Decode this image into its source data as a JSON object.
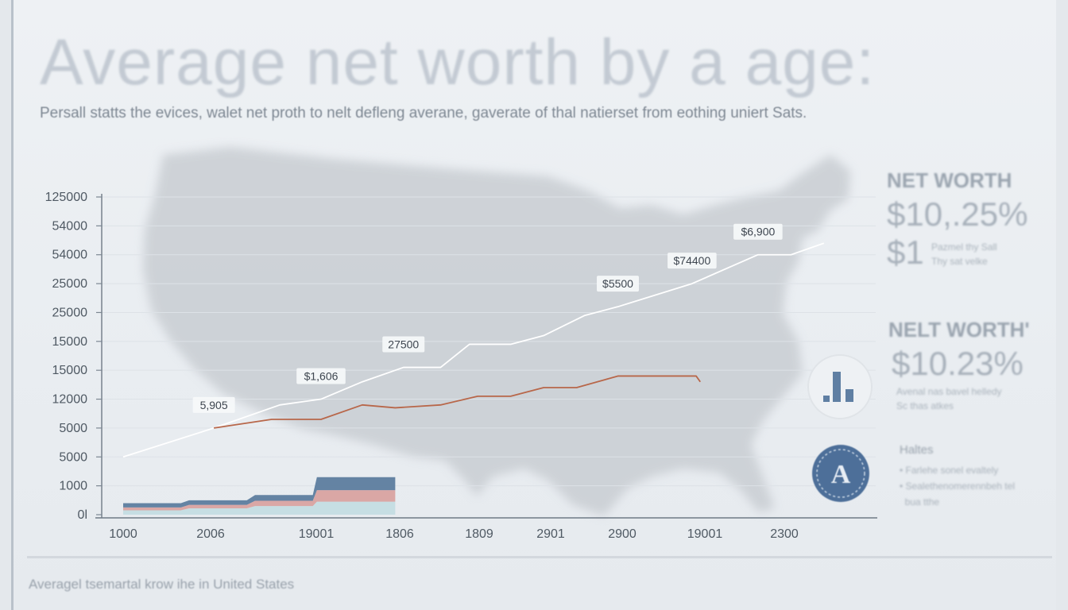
{
  "title": "Average net worth by a age:",
  "subtitle": "Persall statts the evices, walet net proth to nelt defleng averane, gaverate of thal natierset from eothing uniert Sats.",
  "footer": "Averagel tsemartal krow ihe in United States",
  "side_panel": {
    "heading_1": "NET WORTH",
    "value_1a": "$10,.25%",
    "value_1b": "$1",
    "note_1a": "Pazmel thy Sall",
    "note_1b": "Thy sat velke",
    "heading_2": "NELT WORTH'",
    "value_2": "$10.23%",
    "note_2a": "Avenal nas bavel helledy",
    "note_2b": "Sc thas atkes",
    "badge_letter": "A",
    "notes_title": "Haltes",
    "bullet_1": "Farlehe sonel evaltely",
    "bullet_2": "Sealethenomerennbeh tel",
    "bullet_3": "bua tthe",
    "icons": [
      "bar-chart-icon",
      "seal-emblem-icon"
    ]
  },
  "chart_data": {
    "type": "line",
    "y_tick_labels": [
      "0l",
      "1000",
      "5000",
      "5000",
      "12000",
      "15000",
      "15000",
      "25000",
      "25000",
      "54000",
      "54000",
      "125000"
    ],
    "x_tick_labels": [
      "1000",
      "2006",
      "19001",
      "1806",
      "1809",
      "2901",
      "2900",
      "19001",
      "2300"
    ],
    "y_index_range": [
      0,
      11
    ],
    "x_index_range": [
      0,
      8
    ],
    "series": [
      {
        "color": "#ffffff",
        "points": [
          [
            0.0,
            2.0
          ],
          [
            1.1,
            3.0
          ],
          [
            1.9,
            3.8
          ],
          [
            2.4,
            4.0
          ],
          [
            2.9,
            4.6
          ],
          [
            3.4,
            5.1
          ],
          [
            3.85,
            5.1
          ],
          [
            4.2,
            5.9
          ],
          [
            4.7,
            5.9
          ],
          [
            5.1,
            6.2
          ],
          [
            5.6,
            6.9
          ],
          [
            6.0,
            7.2
          ],
          [
            6.9,
            8.0
          ],
          [
            7.7,
            9.0
          ],
          [
            8.1,
            9.0
          ],
          [
            8.5,
            9.4
          ]
        ],
        "labels": [
          {
            "text": "5,905",
            "at": 1
          },
          {
            "text": "$1,606",
            "at": 3
          },
          {
            "text": "27500",
            "at": 5
          },
          {
            "text": "$5500",
            "at": 11
          },
          {
            "text": "$74400",
            "at": 12
          },
          {
            "text": "$6,900",
            "at": 13
          }
        ]
      },
      {
        "color": "#b8674a",
        "points": [
          [
            1.1,
            3.0
          ],
          [
            1.8,
            3.3
          ],
          [
            2.4,
            3.3
          ],
          [
            2.9,
            3.8
          ],
          [
            3.3,
            3.7
          ],
          [
            3.85,
            3.8
          ],
          [
            4.3,
            4.1
          ],
          [
            4.7,
            4.1
          ],
          [
            5.1,
            4.4
          ],
          [
            5.5,
            4.4
          ],
          [
            6.0,
            4.8
          ],
          [
            6.4,
            4.8
          ],
          [
            6.95,
            4.8
          ],
          [
            7.0,
            4.6
          ]
        ]
      }
    ],
    "stacked_area": {
      "x": [
        0.0,
        0.7,
        0.8,
        1.5,
        1.6,
        2.3,
        2.35,
        3.3
      ],
      "layers": [
        {
          "color": "#c4dde2",
          "values": [
            0.15,
            0.15,
            0.22,
            0.22,
            0.3,
            0.3,
            0.45,
            0.45
          ]
        },
        {
          "color": "#d9a3a0",
          "values": [
            0.1,
            0.1,
            0.12,
            0.12,
            0.18,
            0.18,
            0.4,
            0.4
          ]
        },
        {
          "color": "#5d7d9e",
          "values": [
            0.15,
            0.15,
            0.16,
            0.16,
            0.2,
            0.2,
            0.45,
            0.45
          ]
        }
      ]
    },
    "grid": true,
    "background_map": "United States silhouette"
  }
}
